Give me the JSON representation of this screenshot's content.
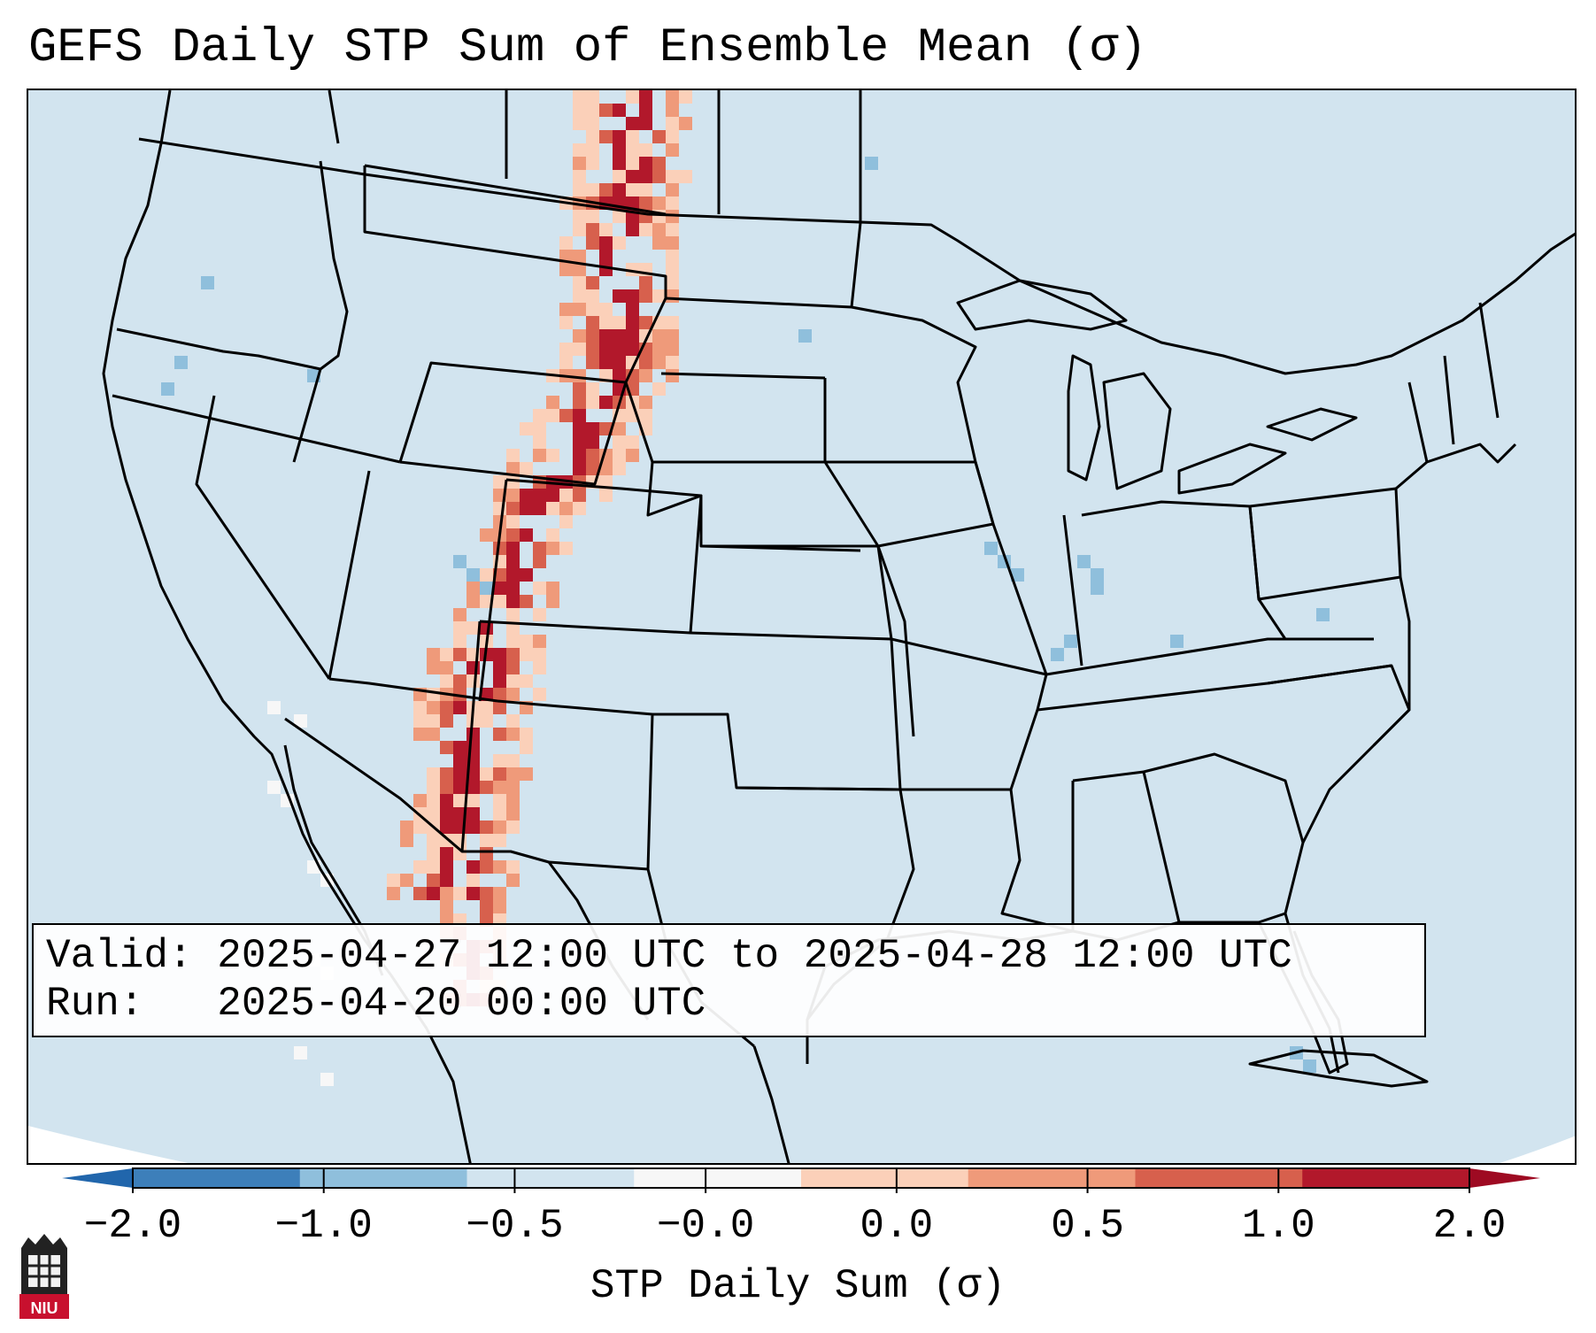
{
  "title": "GEFS Daily STP Sum of Ensemble Mean (σ)",
  "info": {
    "valid_label": "Valid:",
    "valid_value": "2025-04-27 12:00 UTC to 2025-04-28 12:00 UTC",
    "run_label": "Run:",
    "run_value": "2025-04-20 00:00 UTC"
  },
  "colorbar": {
    "label": "STP Daily Sum (σ)",
    "ticks": [
      "−2.0",
      "−1.0",
      "−0.5",
      "−0.0",
      "0.0",
      "0.5",
      "1.0",
      "2.0"
    ],
    "colors": [
      "#3d7fba",
      "#8fbfdc",
      "#d2e4ef",
      "#f7f7f7",
      "#fbd0b9",
      "#ef9a7a",
      "#d7604d",
      "#b2182b"
    ],
    "under_color": "#2166ac",
    "over_color": "#9e0a22"
  },
  "map": {
    "background": "#d2e4ef",
    "border_color": "#000000",
    "shading": {
      "strong_positive": "#b2182b",
      "positive": "#d7604d",
      "light_positive": "#ef9a7a",
      "faint_positive": "#fbd0b9",
      "neutral": "#f7f7f7",
      "negative": "#8fbfdc"
    }
  },
  "logo": {
    "text": "NIU"
  }
}
